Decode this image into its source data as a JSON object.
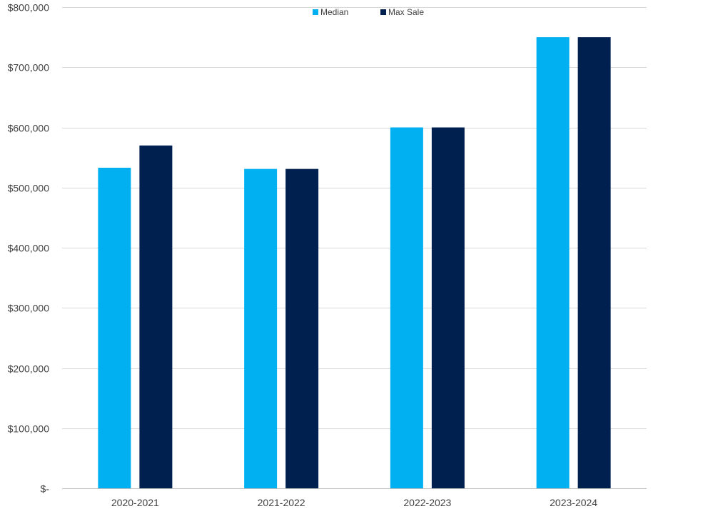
{
  "chart_data": {
    "type": "bar",
    "title": "",
    "xlabel": "",
    "ylabel": "",
    "categories": [
      "2020-2021",
      "2021-2022",
      "2022-2023",
      "2023-2024"
    ],
    "series": [
      {
        "name": "Median",
        "color": "#00B0F0",
        "values": [
          533000,
          531000,
          600000,
          750000
        ]
      },
      {
        "name": "Max Sale",
        "color": "#002050",
        "values": [
          570000,
          531000,
          600000,
          750000
        ]
      }
    ],
    "ylim": [
      0,
      800000
    ],
    "yticks": [
      0,
      100000,
      200000,
      300000,
      400000,
      500000,
      600000,
      700000,
      800000
    ],
    "ytick_labels": [
      "$-",
      "$100,000",
      "$200,000",
      "$300,000",
      "$400,000",
      "$500,000",
      "$600,000",
      "$700,000",
      "$800,000"
    ],
    "grid": true,
    "legend_position": "top-center",
    "gridline_color": "#D9D9D9",
    "axis_color": "#BFBFBF"
  }
}
